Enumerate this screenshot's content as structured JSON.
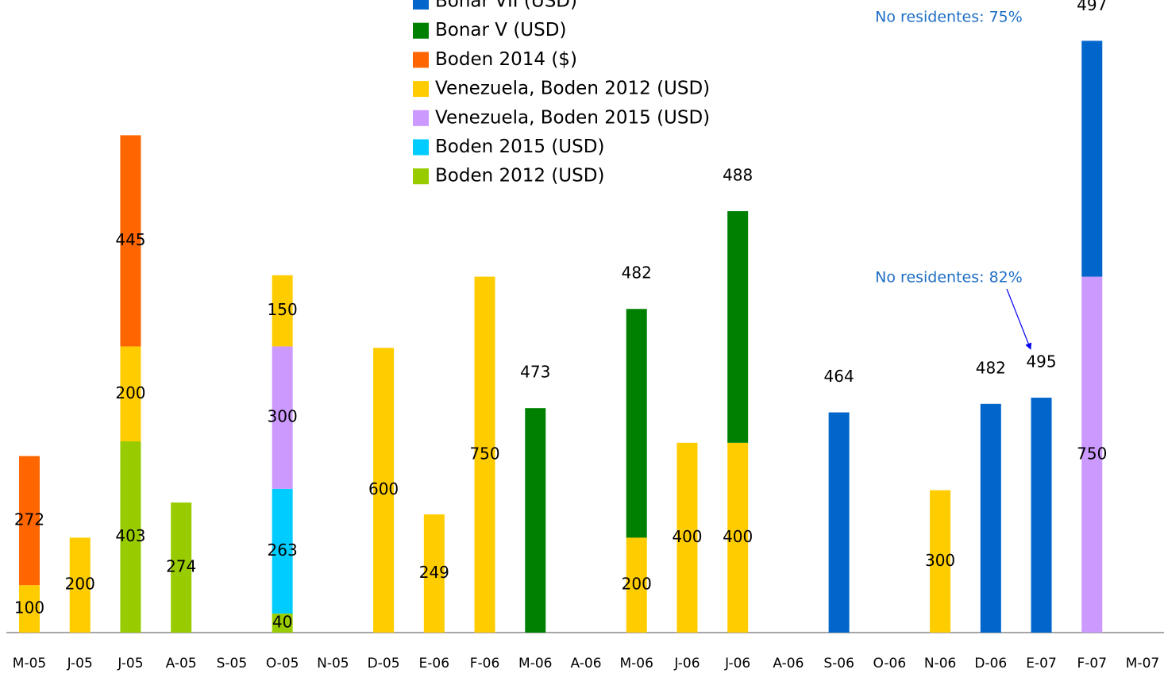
{
  "chart_data": {
    "type": "stacked_bar",
    "categories": [
      "M-05",
      "J-05",
      "J-05",
      "A-05",
      "S-05",
      "O-05",
      "N-05",
      "D-05",
      "E-06",
      "F-06",
      "M-06",
      "A-06",
      "M-06",
      "J-06",
      "J-06",
      "A-06",
      "S-06",
      "O-06",
      "N-06",
      "D-06",
      "E-07",
      "F-07",
      "M-07"
    ],
    "ylim": [
      0,
      1333
    ],
    "legend": "top-center",
    "series": [
      {
        "name": "Boden 2012 (USD)",
        "color": "#99CC00",
        "values": [
          null,
          null,
          403,
          274,
          null,
          40,
          null,
          null,
          null,
          null,
          null,
          null,
          null,
          null,
          null,
          null,
          null,
          null,
          null,
          null,
          null,
          null,
          null
        ]
      },
      {
        "name": "Boden 2015 (USD)",
        "color": "#00CCFF",
        "values": [
          null,
          null,
          null,
          null,
          null,
          263,
          null,
          null,
          null,
          null,
          null,
          null,
          null,
          null,
          null,
          null,
          null,
          null,
          null,
          null,
          null,
          null,
          null
        ]
      },
      {
        "name": "Venezuela, Boden 2015 (USD)",
        "color": "#CC99FF",
        "values": [
          null,
          null,
          null,
          null,
          null,
          300,
          null,
          null,
          null,
          null,
          null,
          null,
          null,
          null,
          null,
          null,
          null,
          null,
          null,
          null,
          null,
          750,
          null
        ]
      },
      {
        "name": "Venezuela, Boden 2012 (USD)",
        "color": "#FFCC00",
        "values": [
          100,
          200,
          200,
          null,
          null,
          150,
          null,
          600,
          249,
          750,
          null,
          null,
          200,
          400,
          400,
          null,
          null,
          null,
          300,
          null,
          null,
          null,
          null
        ]
      },
      {
        "name": "Boden 2014 ($)",
        "color": "#FF6600",
        "values": [
          272,
          null,
          445,
          null,
          null,
          null,
          null,
          null,
          null,
          null,
          null,
          null,
          null,
          null,
          null,
          null,
          null,
          null,
          null,
          null,
          null,
          null,
          null
        ]
      },
      {
        "name": "Bonar V (USD)",
        "color": "#008000",
        "values": [
          null,
          null,
          null,
          null,
          null,
          null,
          null,
          null,
          null,
          null,
          473,
          null,
          482,
          null,
          488,
          null,
          null,
          null,
          null,
          null,
          null,
          null,
          null
        ]
      },
      {
        "name": "Bonar VII (USD)",
        "color": "#0066CC",
        "values": [
          null,
          null,
          null,
          null,
          null,
          null,
          null,
          null,
          null,
          null,
          null,
          null,
          null,
          null,
          null,
          null,
          464,
          null,
          null,
          482,
          495,
          497,
          null
        ]
      }
    ],
    "annotations": [
      "No residentes: 75%",
      "No residentes: 82%"
    ]
  }
}
